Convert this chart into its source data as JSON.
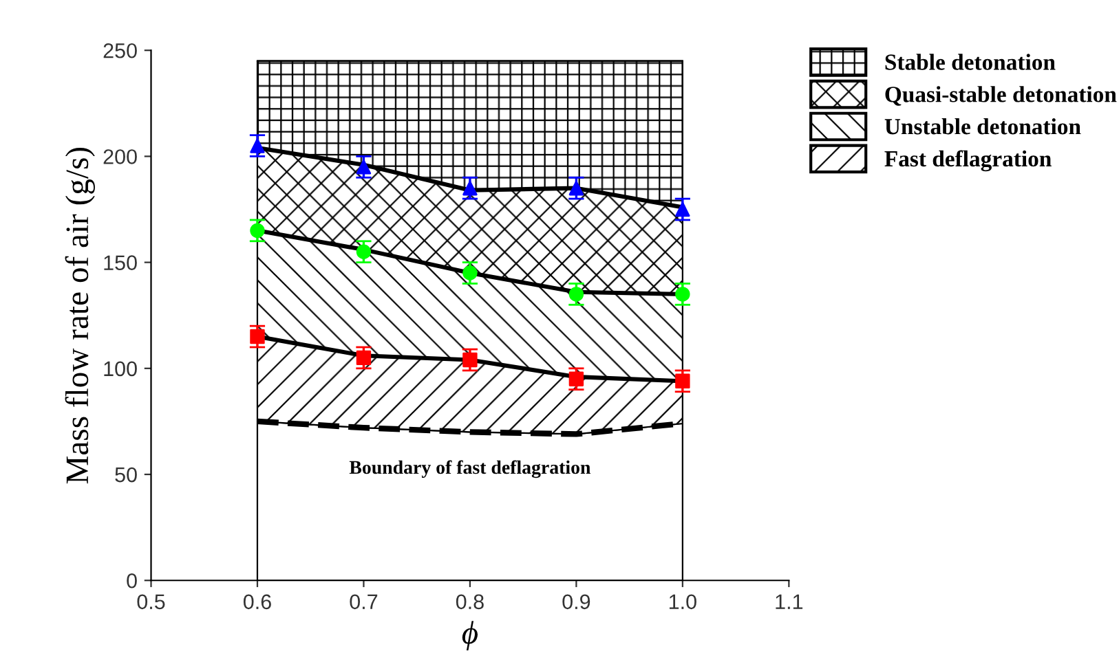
{
  "chart_data": {
    "type": "scatter",
    "xlabel": "ϕ",
    "ylabel": "Mass flow rate of air (g/s)",
    "x": [
      0.6,
      0.7,
      0.8,
      0.9,
      1.0
    ],
    "xlim": [
      0.5,
      1.1
    ],
    "xticks": [
      0.5,
      0.6,
      0.7,
      0.8,
      0.9,
      {
        "value": 1.0,
        "label": "1.0"
      },
      1.1
    ],
    "ylim": [
      0,
      250
    ],
    "yticks": [
      0,
      50,
      100,
      150,
      200,
      250
    ],
    "grid": false,
    "legend": "top right",
    "stacked": true,
    "series": [
      {
        "type": "area",
        "color": "#ffffff",
        "line_style": "dashed",
        "values": [
          75,
          72,
          70,
          69,
          74
        ]
      },
      {
        "name": "Fast deflagration",
        "type": "area",
        "color": "#000000",
        "values": [
          40,
          34,
          34,
          27,
          20
        ]
      },
      {
        "name": "Unstable detonation",
        "type": "area",
        "color": "#000000",
        "values": [
          50,
          50,
          41,
          40,
          41
        ]
      },
      {
        "name": "Quasi-stable detonation",
        "type": "area",
        "color": "#000000",
        "values": [
          39,
          40,
          39,
          49,
          41
        ]
      },
      {
        "name": "Stable detonation",
        "type": "area",
        "color": "#000000",
        "values": [
          41,
          49,
          61,
          60,
          69
        ]
      },
      {
        "color": "#0000ff",
        "marker": "triangle",
        "values": [
          205,
          195,
          185,
          185,
          175
        ],
        "errors": [
          5,
          5,
          5,
          5,
          5
        ]
      },
      {
        "color": "#00ff00",
        "marker": "circle",
        "values": [
          165,
          155,
          145,
          135,
          135
        ],
        "errors": [
          5,
          5,
          5,
          5,
          5
        ]
      },
      {
        "color": "#ff0000",
        "marker": "square",
        "values": [
          115,
          105,
          104,
          95,
          94
        ],
        "errors": [
          5,
          5,
          5,
          5,
          5
        ]
      }
    ],
    "annotations": [
      "Boundary of fast deflagration"
    ]
  }
}
